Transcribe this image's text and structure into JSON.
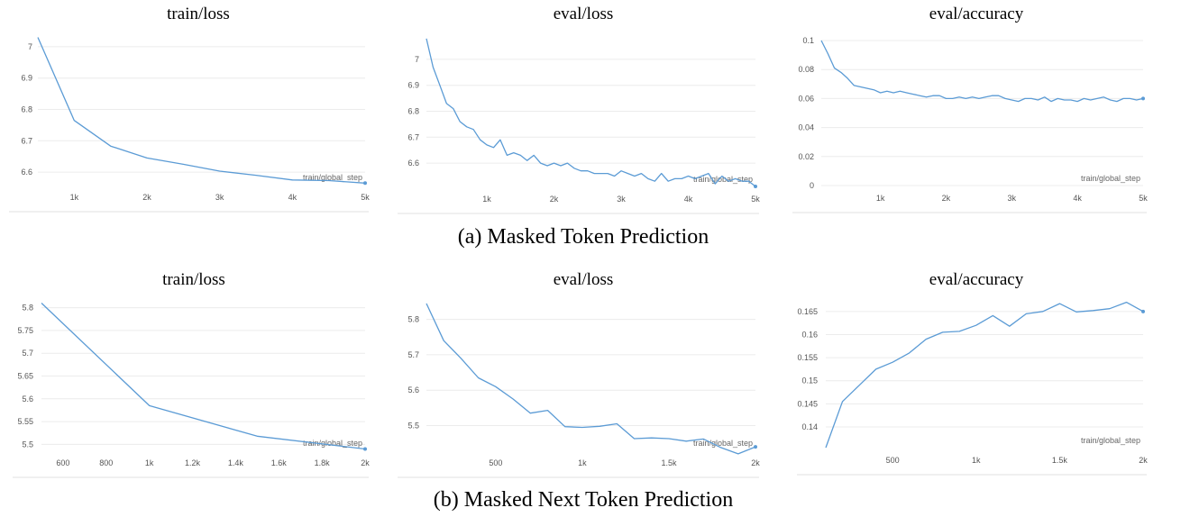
{
  "captions": {
    "a": "(a) Masked Token Prediction",
    "b": "(b) Masked Next Token Prediction"
  },
  "colors": {
    "series": "#5b9bd5",
    "grid": "#ececec"
  },
  "chart_data": [
    {
      "type": "line",
      "title": "train/loss",
      "xlabel": "train/global_step",
      "xlim": [
        500,
        5000
      ],
      "ylim": [
        6.56,
        7.04
      ],
      "xticks": [
        1000,
        2000,
        3000,
        4000,
        5000
      ],
      "xtick_labels": [
        "1k",
        "2k",
        "3k",
        "4k",
        "5k"
      ],
      "yticks": [
        6.6,
        6.7,
        6.8,
        6.9,
        7.0
      ],
      "ytick_labels": [
        "6.6",
        "6.7",
        "6.8",
        "6.9",
        "7"
      ],
      "series": [
        {
          "x": [
            500,
            1000,
            1500,
            2000,
            2500,
            3000,
            3500,
            4000,
            4500,
            5000
          ],
          "y": [
            7.03,
            6.765,
            6.683,
            6.645,
            6.625,
            6.603,
            6.59,
            6.575,
            6.573,
            6.565
          ]
        }
      ]
    },
    {
      "type": "line",
      "title": "eval/loss",
      "xlabel": "train/global_step",
      "xlim": [
        100,
        5000
      ],
      "ylim": [
        6.51,
        7.09
      ],
      "xticks": [
        1000,
        2000,
        3000,
        4000,
        5000
      ],
      "xtick_labels": [
        "1k",
        "2k",
        "3k",
        "4k",
        "5k"
      ],
      "yticks": [
        6.6,
        6.7,
        6.8,
        6.9,
        7.0
      ],
      "ytick_labels": [
        "6.6",
        "6.7",
        "6.8",
        "6.9",
        "7"
      ],
      "series": [
        {
          "x": [
            100,
            200,
            300,
            400,
            500,
            600,
            700,
            800,
            900,
            1000,
            1100,
            1200,
            1300,
            1400,
            1500,
            1600,
            1700,
            1800,
            1900,
            2000,
            2100,
            2200,
            2300,
            2400,
            2500,
            2600,
            2700,
            2800,
            2900,
            3000,
            3100,
            3200,
            3300,
            3400,
            3500,
            3600,
            3700,
            3800,
            3900,
            4000,
            4100,
            4200,
            4300,
            4400,
            4500,
            4600,
            4700,
            4800,
            4900,
            5000
          ],
          "y": [
            7.08,
            6.97,
            6.9,
            6.83,
            6.81,
            6.76,
            6.74,
            6.73,
            6.69,
            6.67,
            6.66,
            6.69,
            6.63,
            6.64,
            6.63,
            6.61,
            6.63,
            6.6,
            6.59,
            6.6,
            6.59,
            6.6,
            6.58,
            6.57,
            6.57,
            6.56,
            6.56,
            6.56,
            6.55,
            6.57,
            6.56,
            6.55,
            6.56,
            6.54,
            6.53,
            6.56,
            6.53,
            6.54,
            6.54,
            6.55,
            6.54,
            6.55,
            6.56,
            6.52,
            6.55,
            6.53,
            6.54,
            6.53,
            6.53,
            6.51
          ]
        }
      ]
    },
    {
      "type": "line",
      "title": "eval/accuracy",
      "xlabel": "train/global_step",
      "xlim": [
        100,
        5000
      ],
      "ylim": [
        0,
        0.1
      ],
      "xticks": [
        1000,
        2000,
        3000,
        4000,
        5000
      ],
      "xtick_labels": [
        "1k",
        "2k",
        "3k",
        "4k",
        "5k"
      ],
      "yticks": [
        0,
        0.02,
        0.04,
        0.06,
        0.08,
        0.1
      ],
      "ytick_labels": [
        "0",
        "0.02",
        "0.04",
        "0.06",
        "0.08",
        "0.1"
      ],
      "series": [
        {
          "x": [
            100,
            200,
            300,
            400,
            500,
            600,
            700,
            800,
            900,
            1000,
            1100,
            1200,
            1300,
            1400,
            1500,
            1600,
            1700,
            1800,
            1900,
            2000,
            2100,
            2200,
            2300,
            2400,
            2500,
            2600,
            2700,
            2800,
            2900,
            3000,
            3100,
            3200,
            3300,
            3400,
            3500,
            3600,
            3700,
            3800,
            3900,
            4000,
            4100,
            4200,
            4300,
            4400,
            4500,
            4600,
            4700,
            4800,
            4900,
            5000
          ],
          "y": [
            0.1,
            0.091,
            0.081,
            0.078,
            0.074,
            0.069,
            0.068,
            0.067,
            0.066,
            0.064,
            0.065,
            0.064,
            0.065,
            0.064,
            0.063,
            0.062,
            0.061,
            0.062,
            0.062,
            0.06,
            0.06,
            0.061,
            0.06,
            0.061,
            0.06,
            0.061,
            0.062,
            0.062,
            0.06,
            0.059,
            0.058,
            0.06,
            0.06,
            0.059,
            0.061,
            0.058,
            0.06,
            0.059,
            0.059,
            0.058,
            0.06,
            0.059,
            0.06,
            0.061,
            0.059,
            0.058,
            0.06,
            0.06,
            0.059,
            0.06
          ]
        }
      ]
    },
    {
      "type": "line",
      "title": "train/loss",
      "xlabel": "train/global_step",
      "xlim": [
        500,
        2000
      ],
      "ylim": [
        5.487,
        5.815
      ],
      "xticks": [
        600,
        800,
        1000,
        1200,
        1400,
        1600,
        1800,
        2000
      ],
      "xtick_labels": [
        "600",
        "800",
        "1k",
        "1.2k",
        "1.4k",
        "1.6k",
        "1.8k",
        "2k"
      ],
      "yticks": [
        5.5,
        5.55,
        5.6,
        5.65,
        5.7,
        5.75,
        5.8
      ],
      "ytick_labels": [
        "5.5",
        "5.55",
        "5.6",
        "5.65",
        "5.7",
        "5.75",
        "5.8"
      ],
      "series": [
        {
          "x": [
            500,
            1000,
            1500,
            2000
          ],
          "y": [
            5.81,
            5.585,
            5.518,
            5.49
          ]
        }
      ]
    },
    {
      "type": "line",
      "title": "eval/loss",
      "xlabel": "train/global_step",
      "xlim": [
        100,
        2000
      ],
      "ylim": [
        5.43,
        5.85
      ],
      "xticks": [
        500,
        1000,
        1500,
        2000
      ],
      "xtick_labels": [
        "500",
        "1k",
        "1.5k",
        "2k"
      ],
      "yticks": [
        5.5,
        5.6,
        5.7,
        5.8
      ],
      "ytick_labels": [
        "5.5",
        "5.6",
        "5.7",
        "5.8"
      ],
      "series": [
        {
          "x": [
            100,
            200,
            300,
            400,
            500,
            600,
            700,
            800,
            900,
            1000,
            1100,
            1200,
            1300,
            1400,
            1500,
            1600,
            1700,
            1800,
            1900,
            2000
          ],
          "y": [
            5.845,
            5.74,
            5.69,
            5.635,
            5.61,
            5.575,
            5.535,
            5.543,
            5.497,
            5.495,
            5.498,
            5.505,
            5.463,
            5.465,
            5.463,
            5.456,
            5.462,
            5.438,
            5.42,
            5.44
          ]
        }
      ]
    },
    {
      "type": "line",
      "title": "eval/accuracy",
      "xlabel": "train/global_step",
      "xlim": [
        100,
        2000
      ],
      "ylim": [
        0.1355,
        0.1675
      ],
      "xticks": [
        500,
        1000,
        1500,
        2000
      ],
      "xtick_labels": [
        "500",
        "1k",
        "1.5k",
        "2k"
      ],
      "yticks": [
        0.14,
        0.145,
        0.15,
        0.155,
        0.16,
        0.165
      ],
      "ytick_labels": [
        "0.14",
        "0.145",
        "0.15",
        "0.155",
        "0.16",
        "0.165"
      ],
      "series": [
        {
          "x": [
            100,
            200,
            300,
            400,
            500,
            600,
            700,
            800,
            900,
            1000,
            1100,
            1200,
            1300,
            1400,
            1500,
            1600,
            1700,
            1800,
            1900,
            2000
          ],
          "y": [
            0.1355,
            0.1455,
            0.149,
            0.1525,
            0.154,
            0.156,
            0.159,
            0.1605,
            0.1607,
            0.162,
            0.1641,
            0.1618,
            0.1645,
            0.165,
            0.1667,
            0.1649,
            0.1652,
            0.1656,
            0.167,
            0.165
          ]
        }
      ]
    }
  ]
}
